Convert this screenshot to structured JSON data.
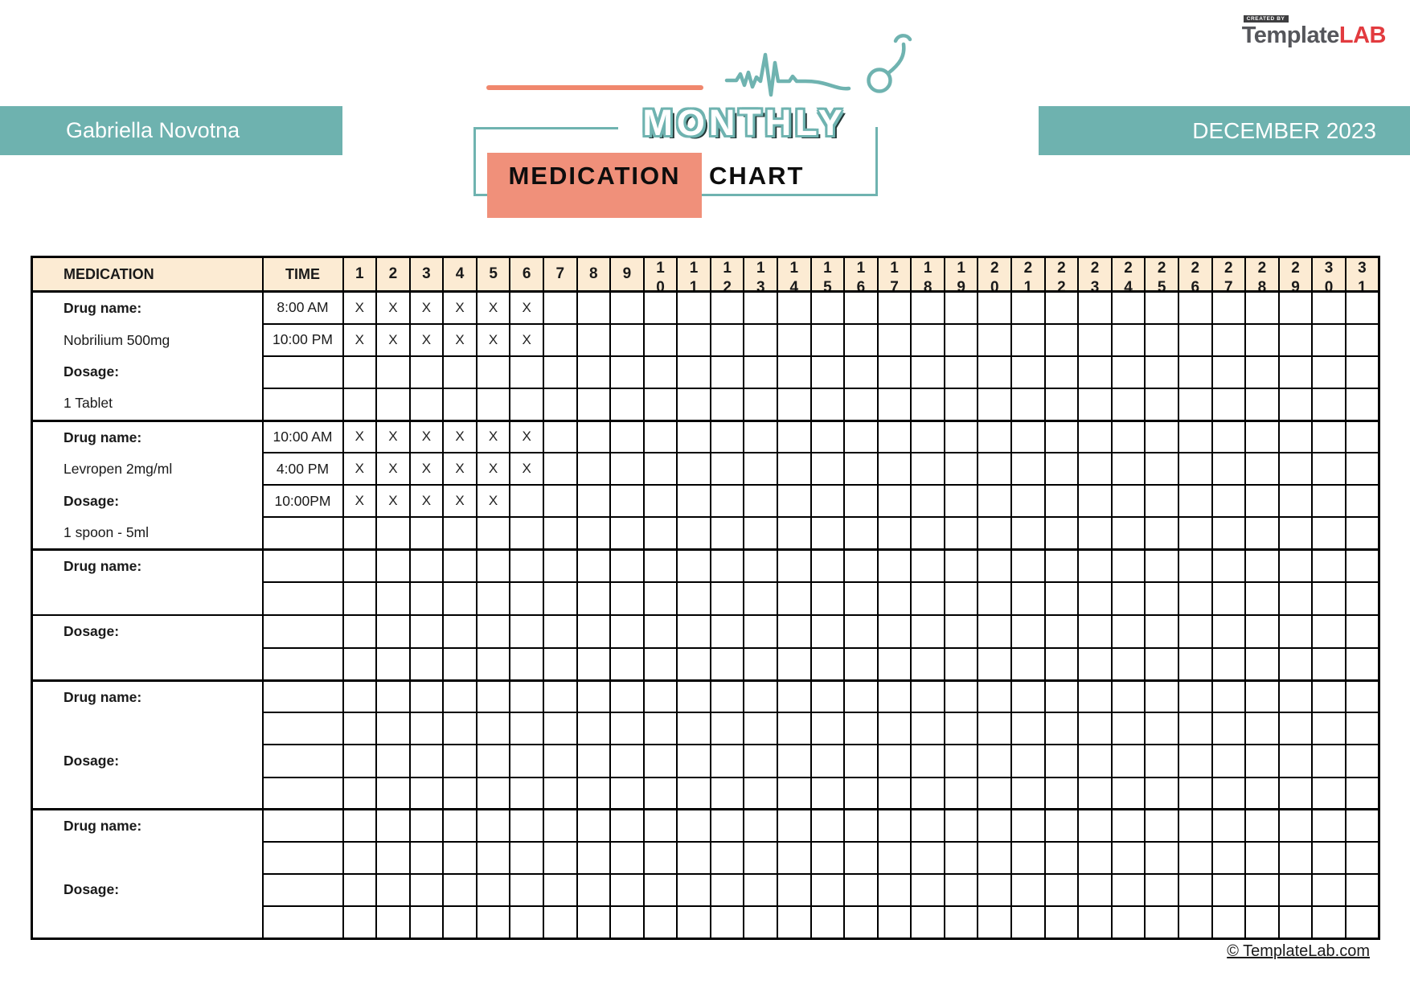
{
  "brand": {
    "created_by": "CREATED BY",
    "name_primary": "Template",
    "name_accent": "LAB"
  },
  "logo": {
    "monthly": "MONTHLY",
    "medication": "MEDICATION",
    "chart": "CHART"
  },
  "patient_banner": {
    "name": "Gabriella Novotna"
  },
  "month_banner": {
    "label": "DECEMBER 2023"
  },
  "colors": {
    "teal": "#6EB2AF",
    "salmon": "#F0907A",
    "header_cream": "#FCEBD3",
    "brand_red": "#E23B3F",
    "brand_gray": "#55565B"
  },
  "table": {
    "headers": {
      "medication": "MEDICATION",
      "time": "TIME"
    },
    "days": [
      1,
      2,
      3,
      4,
      5,
      6,
      7,
      8,
      9,
      10,
      11,
      12,
      13,
      14,
      15,
      16,
      17,
      18,
      19,
      20,
      21,
      22,
      23,
      24,
      25,
      26,
      27,
      28,
      29,
      30,
      31
    ],
    "mark": "X",
    "blocks": [
      {
        "med_lines": [
          {
            "text": "Drug name:",
            "bold": true
          },
          {
            "text": "Nobrilium 500mg",
            "bold": false
          },
          {
            "text": "Dosage:",
            "bold": true
          },
          {
            "text": "1 Tablet",
            "bold": false
          }
        ],
        "split_med_cell": false,
        "rows": [
          {
            "time": "8:00 AM",
            "marked_days": [
              1,
              2,
              3,
              4,
              5,
              6
            ]
          },
          {
            "time": "10:00 PM",
            "marked_days": [
              1,
              2,
              3,
              4,
              5,
              6
            ]
          },
          {
            "time": "",
            "marked_days": []
          },
          {
            "time": "",
            "marked_days": []
          }
        ]
      },
      {
        "med_lines": [
          {
            "text": "Drug name:",
            "bold": true
          },
          {
            "text": "Levropen 2mg/ml",
            "bold": false
          },
          {
            "text": "Dosage:",
            "bold": true
          },
          {
            "text": "1 spoon - 5ml",
            "bold": false
          }
        ],
        "split_med_cell": false,
        "rows": [
          {
            "time": "10:00 AM",
            "marked_days": [
              1,
              2,
              3,
              4,
              5,
              6
            ]
          },
          {
            "time": "4:00 PM",
            "marked_days": [
              1,
              2,
              3,
              4,
              5,
              6
            ]
          },
          {
            "time": "10:00PM",
            "marked_days": [
              1,
              2,
              3,
              4,
              5
            ]
          },
          {
            "time": "",
            "marked_days": []
          }
        ]
      },
      {
        "med_lines": [
          {
            "text": "Drug name:",
            "bold": true
          },
          {
            "text": "",
            "bold": false
          },
          {
            "text": "Dosage:",
            "bold": true
          },
          {
            "text": "",
            "bold": false
          }
        ],
        "split_med_cell": true,
        "rows": [
          {
            "time": "",
            "marked_days": []
          },
          {
            "time": "",
            "marked_days": []
          },
          {
            "time": "",
            "marked_days": []
          },
          {
            "time": "",
            "marked_days": []
          }
        ]
      },
      {
        "med_lines": [
          {
            "text": "Drug name:",
            "bold": true
          },
          {
            "text": "",
            "bold": false
          },
          {
            "text": "Dosage:",
            "bold": true
          },
          {
            "text": "",
            "bold": false
          }
        ],
        "split_med_cell": false,
        "rows": [
          {
            "time": "",
            "marked_days": []
          },
          {
            "time": "",
            "marked_days": []
          },
          {
            "time": "",
            "marked_days": []
          },
          {
            "time": "",
            "marked_days": []
          }
        ]
      },
      {
        "med_lines": [
          {
            "text": "Drug name:",
            "bold": true
          },
          {
            "text": "",
            "bold": false
          },
          {
            "text": "Dosage:",
            "bold": true
          },
          {
            "text": "",
            "bold": false
          }
        ],
        "split_med_cell": false,
        "rows": [
          {
            "time": "",
            "marked_days": []
          },
          {
            "time": "",
            "marked_days": []
          },
          {
            "time": "",
            "marked_days": []
          },
          {
            "time": "",
            "marked_days": []
          }
        ]
      }
    ]
  },
  "footer": {
    "copyright": "© TemplateLab.com"
  }
}
